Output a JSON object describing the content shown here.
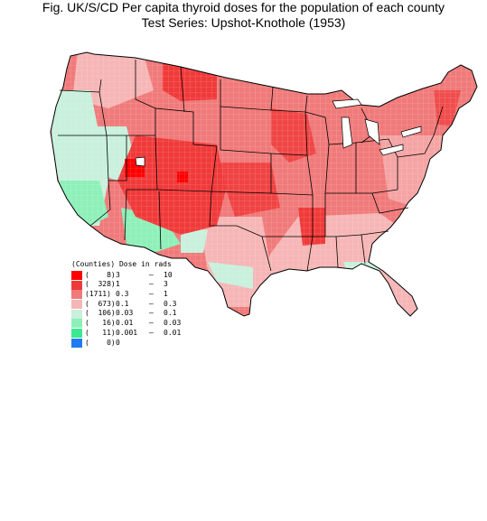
{
  "title": {
    "line1": "Fig. UK/S/CD   Per capita thyroid doses for the population of each county",
    "line2": "Test Series:  Upshot-Knothole (1953)"
  },
  "legend": {
    "header": "(Counties) Dose in rads",
    "rows": [
      {
        "count": "(    8)",
        "low": "3",
        "dash": "–",
        "high": "10",
        "color": "#ff0000"
      },
      {
        "count": "(  328)",
        "low": "1",
        "dash": "–",
        "high": "3",
        "color": "#f03a3a"
      },
      {
        "count": "(1711)",
        "low": "0.3",
        "dash": "–",
        "high": "1",
        "color": "#f07a7a"
      },
      {
        "count": "(  673)",
        "low": "0.1",
        "dash": "–",
        "high": "0.3",
        "color": "#f6b6b6"
      },
      {
        "count": "(  106)",
        "low": "0.03",
        "dash": "–",
        "high": "0.1",
        "color": "#c8f0dc"
      },
      {
        "count": "(   16)",
        "low": "0.01",
        "dash": "–",
        "high": "0.03",
        "color": "#8ef0b8"
      },
      {
        "count": "(   11)",
        "low": "0.001",
        "dash": "–",
        "high": "0.01",
        "color": "#3ce890"
      },
      {
        "count": "(    0)",
        "low": "0",
        "dash": "",
        "high": "",
        "color": "#1e7cf0"
      }
    ]
  }
}
